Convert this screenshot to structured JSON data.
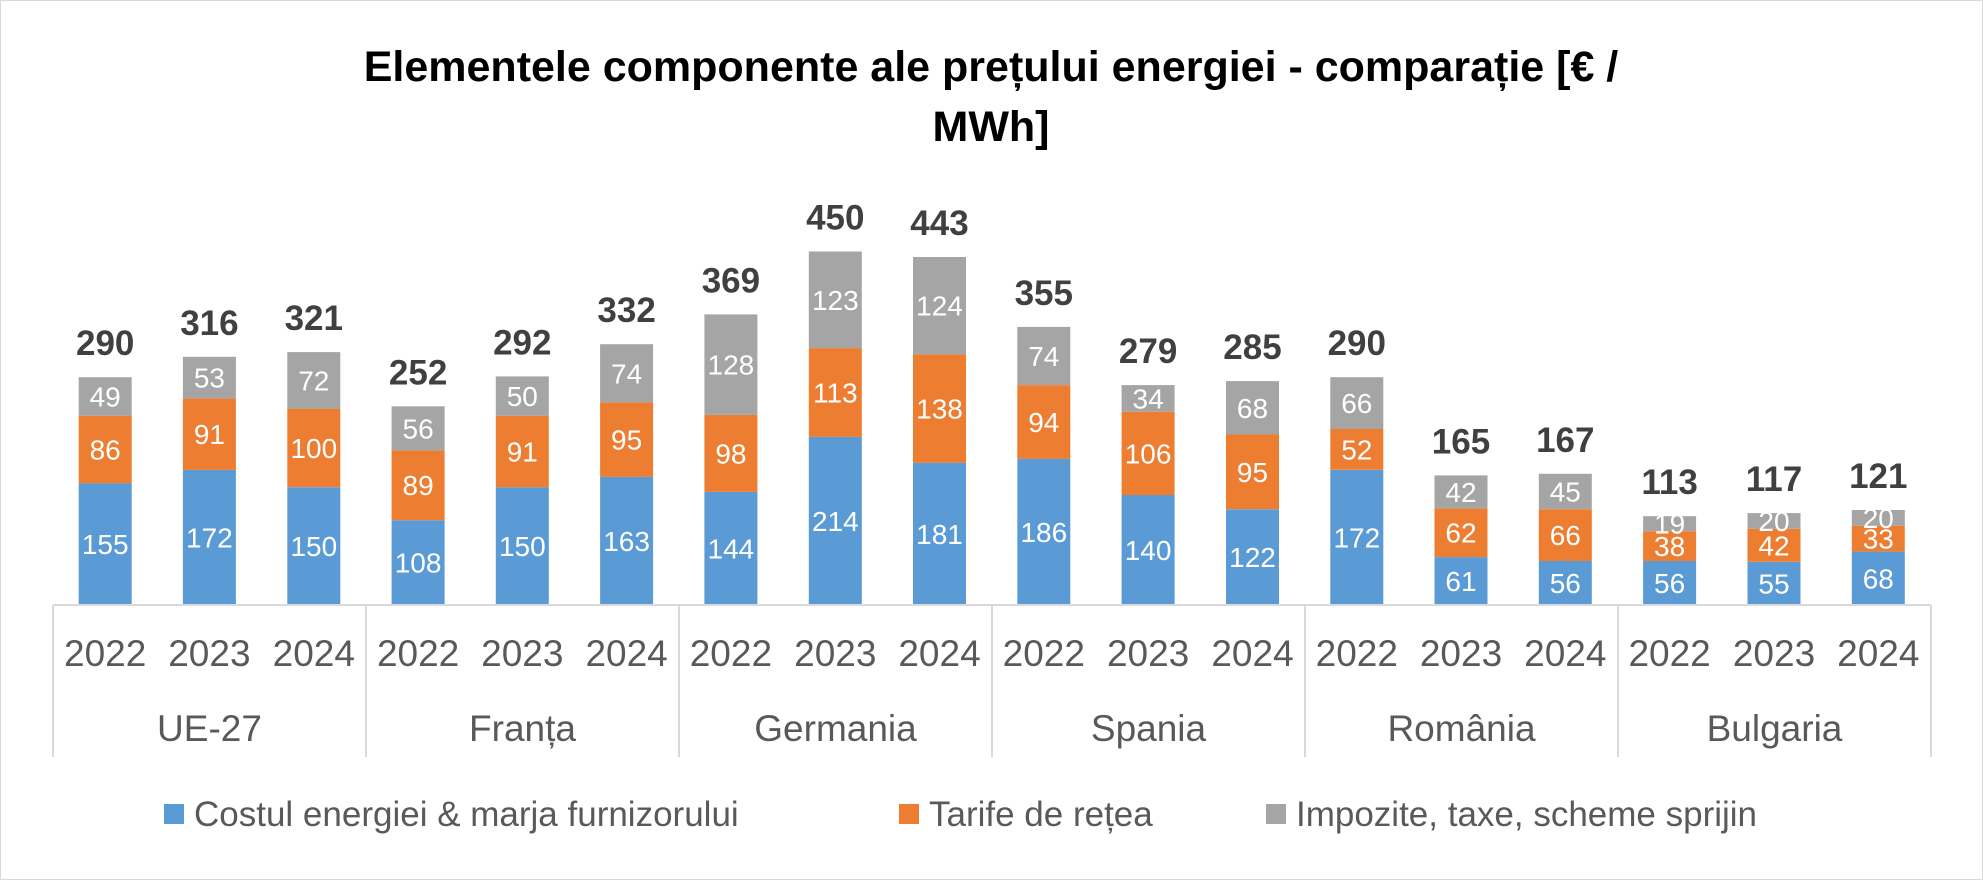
{
  "chart_data": {
    "type": "bar",
    "stacked": true,
    "title_line1": "Elementele componente ale prețului energiei - comparație [€ /",
    "title_line2": "MWh]",
    "groups": [
      {
        "name": "UE-27",
        "years": [
          "2022",
          "2023",
          "2024"
        ],
        "totals": [
          290,
          316,
          321
        ]
      },
      {
        "name": "Franța",
        "years": [
          "2022",
          "2023",
          "2024"
        ],
        "totals": [
          252,
          292,
          332
        ]
      },
      {
        "name": "Germania",
        "years": [
          "2022",
          "2023",
          "2024"
        ],
        "totals": [
          369,
          450,
          443
        ]
      },
      {
        "name": "Spania",
        "years": [
          "2022",
          "2023",
          "2024"
        ],
        "totals": [
          355,
          279,
          285
        ]
      },
      {
        "name": "România",
        "years": [
          "2022",
          "2023",
          "2024"
        ],
        "totals": [
          290,
          165,
          167
        ]
      },
      {
        "name": "Bulgaria",
        "years": [
          "2022",
          "2023",
          "2024"
        ],
        "totals": [
          113,
          117,
          121
        ]
      }
    ],
    "series": [
      {
        "name": "Costul energiei & marja furnizorului",
        "color": "#5b9bd5",
        "values": [
          155,
          172,
          150,
          108,
          150,
          163,
          144,
          214,
          181,
          186,
          140,
          122,
          172,
          61,
          56,
          56,
          55,
          68
        ]
      },
      {
        "name": "Tarife de rețea",
        "color": "#ed7d31",
        "values": [
          86,
          91,
          100,
          89,
          91,
          95,
          98,
          113,
          138,
          94,
          106,
          95,
          52,
          62,
          66,
          38,
          42,
          33
        ]
      },
      {
        "name": "Impozite, taxe, scheme sprijin",
        "color": "#a5a5a5",
        "values": [
          49,
          53,
          72,
          56,
          50,
          74,
          128,
          123,
          124,
          74,
          34,
          68,
          66,
          42,
          45,
          19,
          20,
          20
        ]
      }
    ],
    "legend_position": "bottom",
    "grid": false,
    "ylim": [
      0,
      480
    ]
  }
}
